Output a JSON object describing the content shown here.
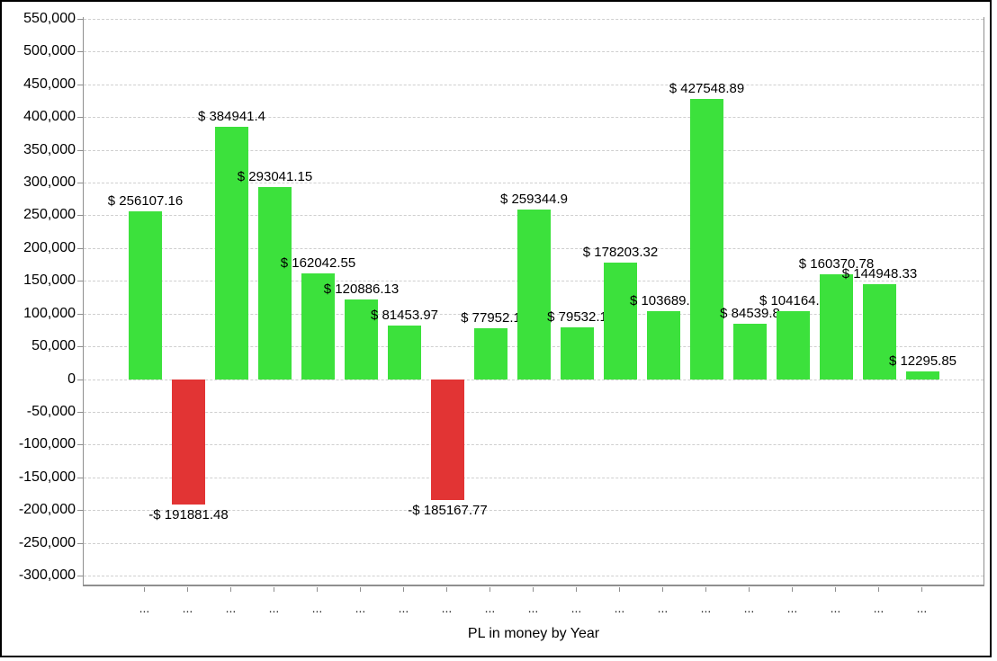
{
  "chart_data": {
    "type": "bar",
    "title": "",
    "xlabel": "PL in money by Year",
    "ylabel": "",
    "ylim": [
      -300000,
      550000
    ],
    "ytick_step": 50000,
    "grid": "horizontal-dashed",
    "legend": "none",
    "y_ticks": [
      "550,000",
      "500,000",
      "450,000",
      "400,000",
      "350,000",
      "300,000",
      "250,000",
      "200,000",
      "150,000",
      "100,000",
      "50,000",
      "0",
      "-50,000",
      "-100,000",
      "-150,000",
      "-200,000",
      "-250,000",
      "-300,000"
    ],
    "categories": [
      "...",
      "...",
      "...",
      "...",
      "...",
      "...",
      "...",
      "...",
      "...",
      "...",
      "...",
      "...",
      "...",
      "...",
      "...",
      "...",
      "...",
      "...",
      "..."
    ],
    "bars": [
      {
        "label": "$ 256107.16",
        "value": 256107.16
      },
      {
        "label": "-$ 191881.48",
        "value": -191881.48
      },
      {
        "label": "$ 384941.4",
        "value": 384941.4
      },
      {
        "label": "$ 293041.15",
        "value": 293041.15
      },
      {
        "label": "$ 162042.55",
        "value": 162042.55
      },
      {
        "label": "$ 120886.13",
        "value": 120886.13
      },
      {
        "label": "$ 81453.97",
        "value": 81453.97
      },
      {
        "label": "-$ 185167.77",
        "value": -185167.77
      },
      {
        "label": "$ 77952.1",
        "value": 77952.1
      },
      {
        "label": "$ 259344.9",
        "value": 259344.9
      },
      {
        "label": "$ 79532.1",
        "value": 79532.1
      },
      {
        "label": "$ 178203.32",
        "value": 178203.32
      },
      {
        "label": "$ 103689.0",
        "value": 103689.0
      },
      {
        "label": "$ 427548.89",
        "value": 427548.89
      },
      {
        "label": "$ 84539.8",
        "value": 84539.8
      },
      {
        "label": "$ 104164.4",
        "value": 104164.4
      },
      {
        "label": "$ 160370.78",
        "value": 160370.78
      },
      {
        "label": "$ 144948.33",
        "value": 144948.33
      },
      {
        "label": "$ 12295.85",
        "value": 12295.85
      }
    ],
    "colors": {
      "positive": "#3ce13c",
      "negative": "#e23434",
      "gridline": "#cfcfcf",
      "frame": "#8f8f8f"
    }
  }
}
